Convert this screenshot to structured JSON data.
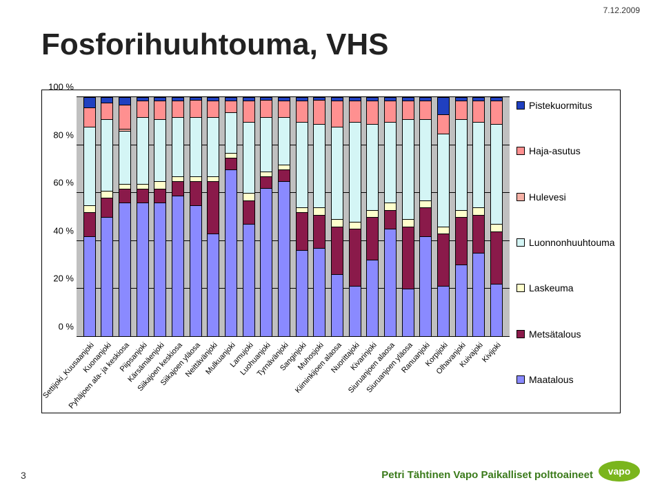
{
  "page": {
    "date": "7.12.2009",
    "title": "Fosforihuuhtouma, VHS",
    "page_number": "3",
    "footer_text": "Petri Tähtinen Vapo Paikalliset polttoaineet"
  },
  "chart": {
    "type": "stacked-bar-100",
    "background_color": "#c0c0c0",
    "grid_color": "#000000",
    "ylim": [
      0,
      100
    ],
    "y_ticks": [
      "0 %",
      "20 %",
      "40 %",
      "60 %",
      "80 %",
      "100 %"
    ],
    "series": [
      {
        "key": "maatalous",
        "label": "Maatalous",
        "color": "#8a8aff"
      },
      {
        "key": "metsatalous",
        "label": "Metsätalous",
        "color": "#8a1a4a"
      },
      {
        "key": "laskeuma",
        "label": "Laskeuma",
        "color": "#ffffcc"
      },
      {
        "key": "luonnonhuuhtouma",
        "label": "Luonnonhuuhtouma",
        "color": "#d4f5f5"
      },
      {
        "key": "hulevesi",
        "label": "Hulevesi",
        "color": "#f5b0a5"
      },
      {
        "key": "haja_asutus",
        "label": "Haja-asutus",
        "color": "#ff9090"
      },
      {
        "key": "pistekuormitus",
        "label": "Pistekuormitus",
        "color": "#2040c0"
      }
    ],
    "legend_order": [
      "pistekuormitus",
      "haja_asutus",
      "hulevesi",
      "luonnonhuuhtouma",
      "laskeuma",
      "metsatalous",
      "maatalous"
    ],
    "categories": [
      "Settijoki_Kuusaanjoki",
      "Kuonanjoki",
      "Pyhäjoen ala- ja keskiosa",
      "Piipsanjoki",
      "Kärsämäenjoki",
      "Siikajoen keskiosa",
      "Siikajoen yläosa",
      "Neittävänjoki",
      "Mulkuanjoki",
      "Lamujoki",
      "Luohuanjoki",
      "Tyrnävänjoki",
      "Sanginjoki",
      "Muhosjoki",
      "Kiiminkijoen alaosa",
      "Nuorittajoki",
      "Kivarinjoki",
      "Siuruanjoen alaosa",
      "Siuruanjoen yläosa",
      "Ranuanjoki",
      "Korpijoki",
      "Olhavanjoki",
      "Kuivajoki",
      "Kivijoki"
    ],
    "values": [
      {
        "maatalous": 42,
        "metsatalous": 10,
        "laskeuma": 3,
        "luonnonhuuhtouma": 33,
        "hulevesi": 0,
        "haja_asutus": 8,
        "pistekuormitus": 4
      },
      {
        "maatalous": 50,
        "metsatalous": 8,
        "laskeuma": 3,
        "luonnonhuuhtouma": 30,
        "hulevesi": 0,
        "haja_asutus": 7,
        "pistekuormitus": 2
      },
      {
        "maatalous": 56,
        "metsatalous": 6,
        "laskeuma": 2,
        "luonnonhuuhtouma": 22,
        "hulevesi": 1,
        "haja_asutus": 10,
        "pistekuormitus": 3
      },
      {
        "maatalous": 56,
        "metsatalous": 6,
        "laskeuma": 2,
        "luonnonhuuhtouma": 28,
        "hulevesi": 0,
        "haja_asutus": 7,
        "pistekuormitus": 1
      },
      {
        "maatalous": 56,
        "metsatalous": 6,
        "laskeuma": 3,
        "luonnonhuuhtouma": 26,
        "hulevesi": 0,
        "haja_asutus": 8,
        "pistekuormitus": 1
      },
      {
        "maatalous": 59,
        "metsatalous": 6,
        "laskeuma": 2,
        "luonnonhuuhtouma": 25,
        "hulevesi": 0,
        "haja_asutus": 7,
        "pistekuormitus": 1
      },
      {
        "maatalous": 55,
        "metsatalous": 10,
        "laskeuma": 2,
        "luonnonhuuhtouma": 25,
        "hulevesi": 0,
        "haja_asutus": 7,
        "pistekuormitus": 1
      },
      {
        "maatalous": 43,
        "metsatalous": 22,
        "laskeuma": 2,
        "luonnonhuuhtouma": 25,
        "hulevesi": 0,
        "haja_asutus": 7,
        "pistekuormitus": 1
      },
      {
        "maatalous": 70,
        "metsatalous": 5,
        "laskeuma": 2,
        "luonnonhuuhtouma": 17,
        "hulevesi": 0,
        "haja_asutus": 5,
        "pistekuormitus": 1
      },
      {
        "maatalous": 47,
        "metsatalous": 10,
        "laskeuma": 3,
        "luonnonhuuhtouma": 30,
        "hulevesi": 0,
        "haja_asutus": 9,
        "pistekuormitus": 1
      },
      {
        "maatalous": 62,
        "metsatalous": 5,
        "laskeuma": 2,
        "luonnonhuuhtouma": 23,
        "hulevesi": 0,
        "haja_asutus": 7,
        "pistekuormitus": 1
      },
      {
        "maatalous": 65,
        "metsatalous": 5,
        "laskeuma": 2,
        "luonnonhuuhtouma": 20,
        "hulevesi": 0,
        "haja_asutus": 7,
        "pistekuormitus": 1
      },
      {
        "maatalous": 36,
        "metsatalous": 16,
        "laskeuma": 2,
        "luonnonhuuhtouma": 36,
        "hulevesi": 0,
        "haja_asutus": 9,
        "pistekuormitus": 1
      },
      {
        "maatalous": 37,
        "metsatalous": 14,
        "laskeuma": 3,
        "luonnonhuuhtouma": 35,
        "hulevesi": 0,
        "haja_asutus": 10,
        "pistekuormitus": 1
      },
      {
        "maatalous": 26,
        "metsatalous": 20,
        "laskeuma": 3,
        "luonnonhuuhtouma": 39,
        "hulevesi": 0,
        "haja_asutus": 11,
        "pistekuormitus": 1
      },
      {
        "maatalous": 21,
        "metsatalous": 24,
        "laskeuma": 3,
        "luonnonhuuhtouma": 42,
        "hulevesi": 0,
        "haja_asutus": 9,
        "pistekuormitus": 1
      },
      {
        "maatalous": 32,
        "metsatalous": 18,
        "laskeuma": 3,
        "luonnonhuuhtouma": 36,
        "hulevesi": 0,
        "haja_asutus": 10,
        "pistekuormitus": 1
      },
      {
        "maatalous": 45,
        "metsatalous": 8,
        "laskeuma": 3,
        "luonnonhuuhtouma": 34,
        "hulevesi": 0,
        "haja_asutus": 9,
        "pistekuormitus": 1
      },
      {
        "maatalous": 20,
        "metsatalous": 26,
        "laskeuma": 3,
        "luonnonhuuhtouma": 42,
        "hulevesi": 0,
        "haja_asutus": 8,
        "pistekuormitus": 1
      },
      {
        "maatalous": 42,
        "metsatalous": 12,
        "laskeuma": 3,
        "luonnonhuuhtouma": 34,
        "hulevesi": 0,
        "haja_asutus": 8,
        "pistekuormitus": 1
      },
      {
        "maatalous": 21,
        "metsatalous": 22,
        "laskeuma": 3,
        "luonnonhuuhtouma": 39,
        "hulevesi": 0,
        "haja_asutus": 8,
        "pistekuormitus": 7
      },
      {
        "maatalous": 30,
        "metsatalous": 20,
        "laskeuma": 3,
        "luonnonhuuhtouma": 38,
        "hulevesi": 0,
        "haja_asutus": 8,
        "pistekuormitus": 1
      },
      {
        "maatalous": 35,
        "metsatalous": 16,
        "laskeuma": 3,
        "luonnonhuuhtouma": 36,
        "hulevesi": 0,
        "haja_asutus": 9,
        "pistekuormitus": 1
      },
      {
        "maatalous": 22,
        "metsatalous": 22,
        "laskeuma": 3,
        "luonnonhuuhtouma": 42,
        "hulevesi": 0,
        "haja_asutus": 10,
        "pistekuormitus": 1
      }
    ]
  },
  "logo": {
    "text": "vapo",
    "bg": "#7ab51d",
    "fg": "#ffffff"
  }
}
